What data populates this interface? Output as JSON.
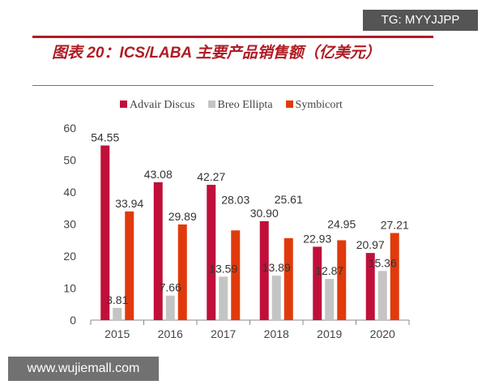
{
  "watermarks": {
    "top": "TG: MYYJJPP",
    "bottom": "www.wujiemall.com"
  },
  "chart_data": {
    "type": "bar",
    "title": "图表 20：ICS/LABA 主要产品销售额（亿美元）",
    "xlabel": "",
    "ylabel": "",
    "categories": [
      "2015",
      "2016",
      "2017",
      "2018",
      "2019",
      "2020"
    ],
    "ylim": [
      0,
      60
    ],
    "yticks": [
      0,
      10,
      20,
      30,
      40,
      50,
      60
    ],
    "grid": false,
    "legend_position": "top",
    "series": [
      {
        "name": "Advair Discus",
        "color": "#c0103a",
        "values": [
          54.55,
          43.08,
          42.27,
          30.9,
          22.93,
          20.97
        ],
        "labels": [
          "54.55",
          "43.08",
          "42.27",
          "30.90",
          "22.93",
          "20.97"
        ]
      },
      {
        "name": "Breo Ellipta",
        "color": "#c4c4c4",
        "values": [
          3.81,
          7.66,
          13.59,
          13.89,
          12.87,
          15.36
        ],
        "labels": [
          "3.81",
          "7.66",
          "13.59",
          "13.89",
          "12.87",
          "15.36"
        ]
      },
      {
        "name": "Symbicort",
        "color": "#e03a0c",
        "values": [
          33.94,
          29.89,
          28.03,
          25.61,
          24.95,
          27.21
        ],
        "labels": [
          "33.94",
          "29.89",
          "28.03",
          "25.61",
          "24.95",
          "27.21"
        ]
      }
    ]
  }
}
